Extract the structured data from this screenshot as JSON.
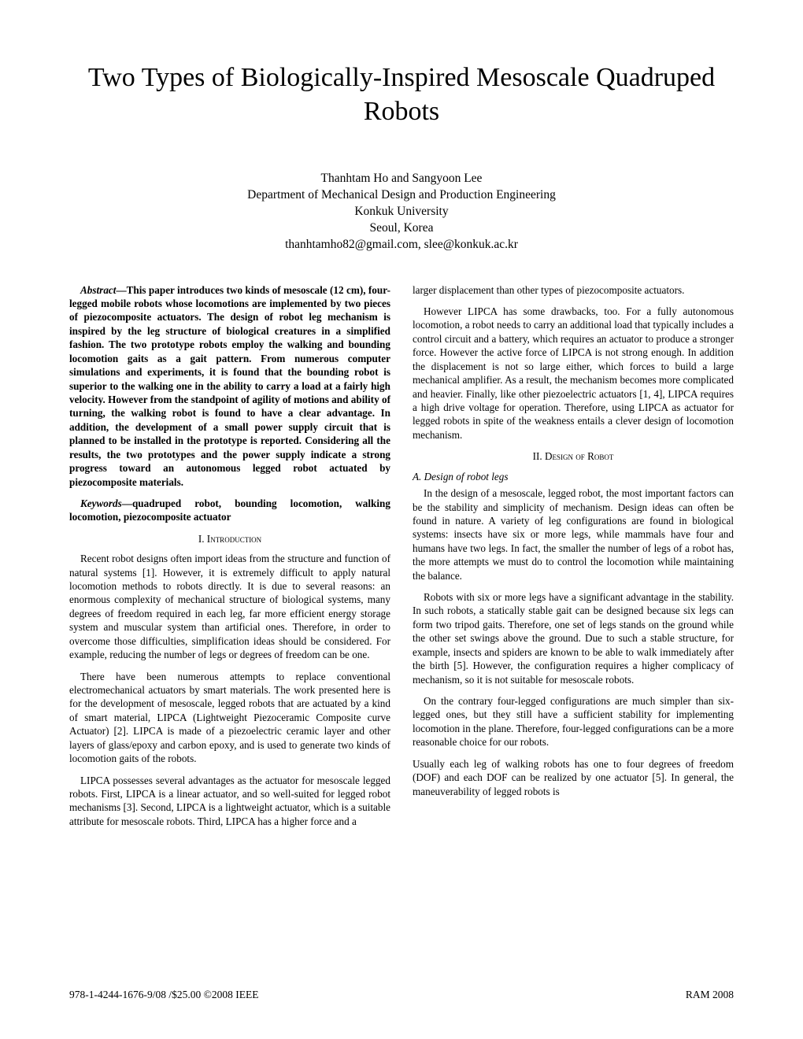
{
  "title": "Two Types of Biologically-Inspired Mesoscale Quadruped Robots",
  "authors": {
    "names": "Thanhtam Ho and Sangyoon Lee",
    "dept": "Department of Mechanical Design and Production Engineering",
    "univ": "Konkuk University",
    "city": "Seoul, Korea",
    "emails": "thanhtamho82@gmail.com, slee@konkuk.ac.kr"
  },
  "left": {
    "abstract_label": "Abstract",
    "abstract_text": "—This paper introduces two kinds of mesoscale (12 cm), four-legged mobile robots whose locomotions are implemented by two pieces of piezocomposite actuators. The design of robot leg mechanism is inspired by the leg structure of biological creatures in a simplified fashion. The two prototype robots employ the walking and bounding locomotion gaits as a gait pattern. From numerous computer simulations and experiments, it is found that the bounding robot is superior to the walking one in the ability to carry a load at a fairly high velocity. However from the standpoint of agility of motions and ability of turning, the walking robot is found to have a clear advantage. In addition, the development of a small power supply circuit that is planned to be installed in the prototype is reported. Considering all the results, the two prototypes and the power supply indicate a strong progress toward an autonomous legged robot actuated by piezocomposite materials.",
    "keywords_label": "Keywords",
    "keywords_text": "—quadruped robot, bounding locomotion, walking locomotion, piezocomposite actuator",
    "sec1_heading": "I.      Introduction",
    "p1": "Recent robot designs often import ideas from the structure and function of natural systems [1]. However, it is extremely difficult to apply natural locomotion methods to robots directly. It is due to several reasons: an enormous complexity of mechanical structure of biological systems, many degrees of freedom required in each leg, far more efficient energy storage system and muscular system than artificial ones. Therefore, in order to overcome those difficulties, simplification ideas should be considered. For example, reducing the number of legs or degrees of freedom can be one.",
    "p2": "There have been numerous attempts to replace conventional electromechanical actuators by smart materials. The work presented here is for the development of mesoscale, legged robots that are actuated by a kind of smart material, LIPCA (Lightweight Piezoceramic Composite curve Actuator) [2]. LIPCA is made of a piezoelectric ceramic layer and other layers of glass/epoxy and carbon epoxy, and is used to generate two kinds of locomotion gaits of the robots.",
    "p3": "LIPCA possesses several advantages as the actuator for mesoscale legged robots. First, LIPCA is a linear actuator, and so well-suited for legged robot mechanisms [3]. Second, LIPCA is a lightweight actuator, which is a suitable attribute for mesoscale robots. Third, LIPCA has a higher force and a"
  },
  "right": {
    "p1": "larger displacement than other types of piezocomposite actuators.",
    "p2": "However LIPCA has some drawbacks, too. For a fully autonomous locomotion, a robot needs to carry an additional load that typically includes a control circuit and a battery, which requires an actuator to produce a stronger force. However the active force of LIPCA is not strong enough. In addition the displacement is not so large either, which forces to build a large mechanical amplifier. As a result, the mechanism becomes more complicated and heavier. Finally, like other piezoelectric actuators [1, 4], LIPCA requires a high drive voltage for operation. Therefore, using LIPCA as actuator for legged robots in spite of the weakness entails a clever design of locomotion mechanism.",
    "sec2_heading": "II.     Design of Robot",
    "subA_heading": "A.   Design of robot legs",
    "p3": "In the design of a mesoscale, legged robot, the most important factors can be the stability and simplicity of mechanism. Design ideas can often be found in nature. A variety of leg configurations are found in biological systems: insects have six or more legs, while mammals have four and humans have two legs. In fact, the smaller the number of legs of a robot has, the more attempts we must do to control the locomotion while maintaining the balance.",
    "p4": "Robots with six or more legs have a significant advantage in the stability. In such robots, a statically stable gait can be designed because six legs can form two tripod gaits. Therefore, one set of legs stands on the ground while the other set swings above the ground. Due to such a stable structure, for example, insects and spiders are known to be able to walk immediately after the birth [5]. However, the configuration requires a higher complicacy of mechanism, so it is not suitable for mesoscale robots.",
    "p5": "On the contrary four-legged configurations are much simpler than six-legged ones, but they still have a sufficient stability for implementing locomotion in the plane. Therefore, four-legged configurations can be a more reasonable choice for our robots.",
    "p6": "Usually each leg of walking robots has one to four degrees of freedom (DOF) and each DOF can be realized by one actuator [5]. In general, the maneuverability of legged robots is"
  },
  "footer": {
    "left": "978-1-4244-1676-9/08 /$25.00 ©2008 IEEE",
    "right": "RAM 2008"
  }
}
